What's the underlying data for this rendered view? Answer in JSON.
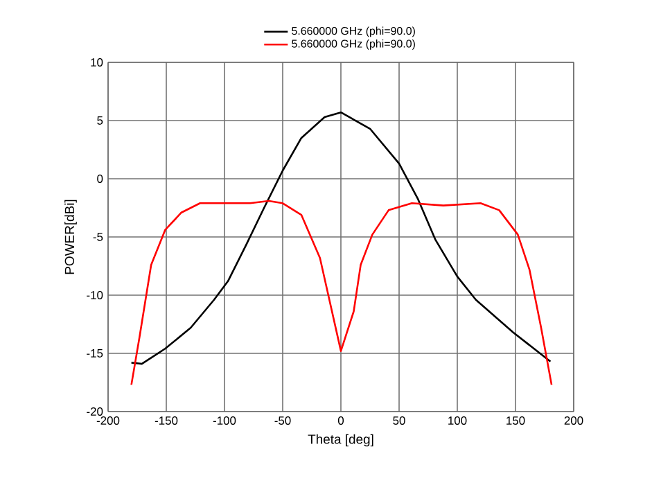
{
  "chart_data": {
    "type": "line",
    "xlabel": "Theta [deg]",
    "ylabel": "POWER[dBi]",
    "xlim": [
      -200,
      200
    ],
    "ylim": [
      -20,
      10
    ],
    "xticks": [
      -200,
      -150,
      -100,
      -50,
      0,
      50,
      100,
      150,
      200
    ],
    "yticks": [
      -20,
      -15,
      -10,
      -5,
      0,
      5,
      10
    ],
    "grid": true,
    "legend": "top",
    "marker": "none",
    "line_style": "solid",
    "series": [
      {
        "name": "5.660000 GHz (phi=90.0)",
        "color": "#000000",
        "x": [
          -180,
          -171,
          -151,
          -129,
          -109,
          -97,
          -81,
          -66,
          -50,
          -34,
          -14,
          0,
          25,
          50,
          66,
          81,
          100,
          116,
          148,
          180
        ],
        "values": [
          -15.8,
          -15.9,
          -14.6,
          -12.8,
          -10.4,
          -8.8,
          -5.6,
          -2.5,
          0.7,
          3.5,
          5.3,
          5.7,
          4.3,
          1.3,
          -1.7,
          -5.2,
          -8.4,
          -10.4,
          -13.2,
          -15.7
        ]
      },
      {
        "name": "5.660000 GHz (phi=90.0)",
        "color": "#ff0000",
        "x": [
          -180,
          -173,
          -163,
          -151,
          -137,
          -121,
          -97,
          -78,
          -62,
          -50,
          -34,
          -18,
          0,
          11,
          17,
          27,
          41,
          61,
          88,
          120,
          136,
          152,
          162,
          172,
          181
        ],
        "values": [
          -17.7,
          -13.6,
          -7.4,
          -4.4,
          -2.9,
          -2.1,
          -2.1,
          -2.1,
          -1.9,
          -2.1,
          -3.1,
          -6.8,
          -14.8,
          -11.4,
          -7.4,
          -4.8,
          -2.7,
          -2.1,
          -2.3,
          -2.1,
          -2.7,
          -4.8,
          -7.8,
          -12.8,
          -17.7
        ]
      }
    ]
  }
}
